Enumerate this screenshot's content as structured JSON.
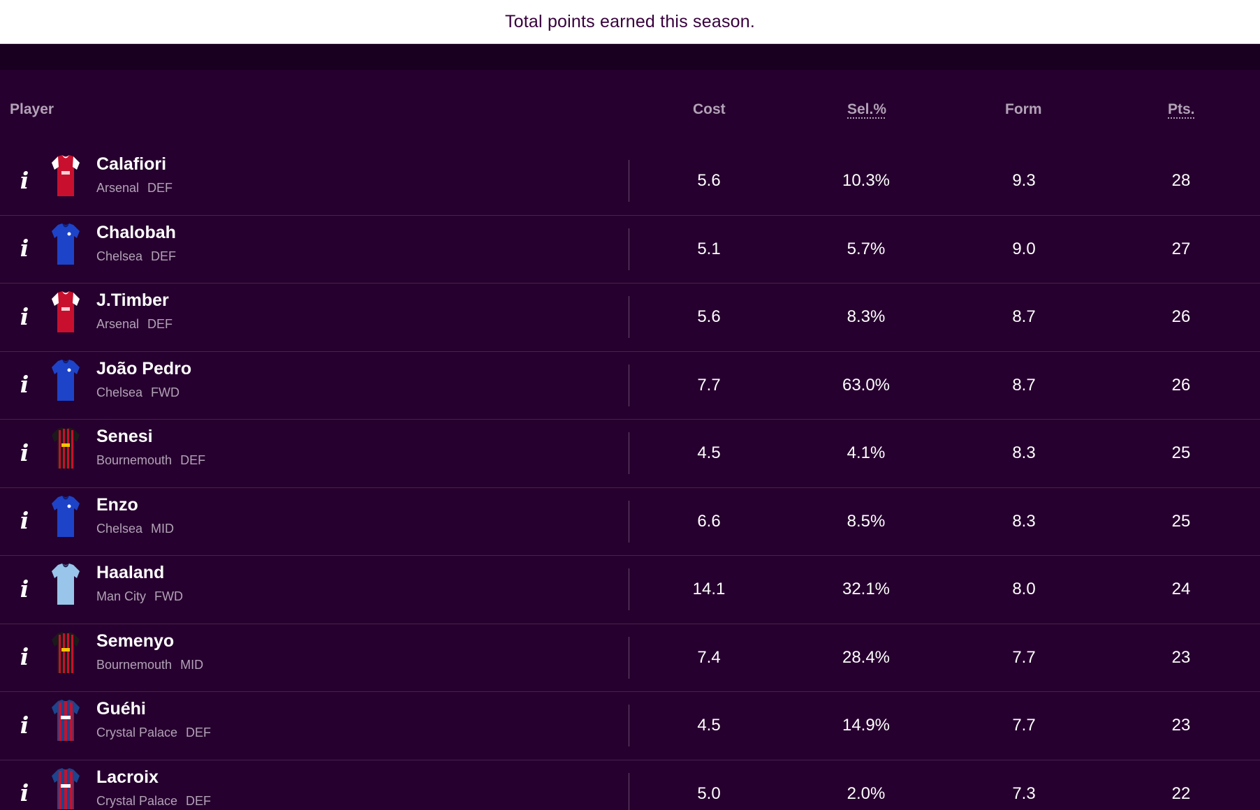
{
  "tooltip": {
    "text": "Total points earned this season."
  },
  "columns": {
    "player": "Player",
    "cost": "Cost",
    "sel": "Sel.%",
    "form": "Form",
    "pts": "Pts."
  },
  "info_icon_glyph": "i",
  "colors": {
    "background": "#26002e",
    "row_divider": "#4a2150",
    "muted_text": "#b3a2b8",
    "tooltip_text": "#37003c"
  },
  "rows": [
    {
      "name": "Calafiori",
      "team": "Arsenal",
      "pos": "DEF",
      "cost": "5.6",
      "sel": "10.3%",
      "form": "9.3",
      "pts": "28",
      "kit": "arsenal"
    },
    {
      "name": "Chalobah",
      "team": "Chelsea",
      "pos": "DEF",
      "cost": "5.1",
      "sel": "5.7%",
      "form": "9.0",
      "pts": "27",
      "kit": "chelsea"
    },
    {
      "name": "J.Timber",
      "team": "Arsenal",
      "pos": "DEF",
      "cost": "5.6",
      "sel": "8.3%",
      "form": "8.7",
      "pts": "26",
      "kit": "arsenal"
    },
    {
      "name": "João Pedro",
      "team": "Chelsea",
      "pos": "FWD",
      "cost": "7.7",
      "sel": "63.0%",
      "form": "8.7",
      "pts": "26",
      "kit": "chelsea"
    },
    {
      "name": "Senesi",
      "team": "Bournemouth",
      "pos": "DEF",
      "cost": "4.5",
      "sel": "4.1%",
      "form": "8.3",
      "pts": "25",
      "kit": "bournemouth"
    },
    {
      "name": "Enzo",
      "team": "Chelsea",
      "pos": "MID",
      "cost": "6.6",
      "sel": "8.5%",
      "form": "8.3",
      "pts": "25",
      "kit": "chelsea"
    },
    {
      "name": "Haaland",
      "team": "Man City",
      "pos": "FWD",
      "cost": "14.1",
      "sel": "32.1%",
      "form": "8.0",
      "pts": "24",
      "kit": "mancity"
    },
    {
      "name": "Semenyo",
      "team": "Bournemouth",
      "pos": "MID",
      "cost": "7.4",
      "sel": "28.4%",
      "form": "7.7",
      "pts": "23",
      "kit": "bournemouth"
    },
    {
      "name": "Guéhi",
      "team": "Crystal Palace",
      "pos": "DEF",
      "cost": "4.5",
      "sel": "14.9%",
      "form": "7.7",
      "pts": "23",
      "kit": "palace"
    },
    {
      "name": "Lacroix",
      "team": "Crystal Palace",
      "pos": "DEF",
      "cost": "5.0",
      "sel": "2.0%",
      "form": "7.3",
      "pts": "22",
      "kit": "palace"
    }
  ]
}
